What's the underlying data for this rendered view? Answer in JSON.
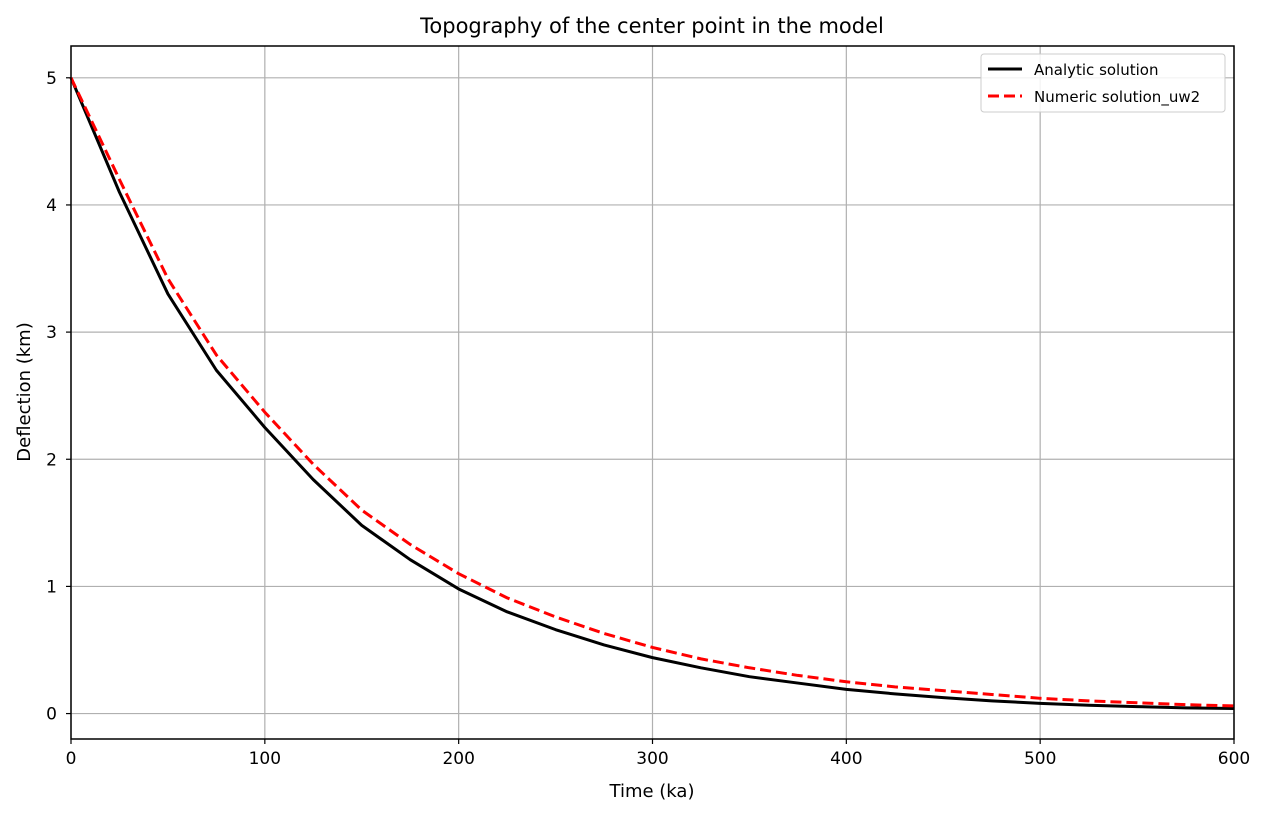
{
  "chart_data": {
    "type": "line",
    "title": "Topography of the center point in the model",
    "xlabel": "Time (ka)",
    "ylabel": "Deflection (km)",
    "xlim": [
      0,
      600
    ],
    "ylim": [
      -0.2,
      5.25
    ],
    "xticks": [
      0,
      100,
      200,
      300,
      400,
      500,
      600
    ],
    "yticks": [
      0,
      1,
      2,
      3,
      4,
      5
    ],
    "grid": true,
    "legend_position": "top-right",
    "series": [
      {
        "name": "Analytic solution",
        "color": "#000000",
        "style": "solid",
        "x": [
          0,
          25,
          50,
          75,
          100,
          125,
          150,
          175,
          200,
          225,
          250,
          275,
          300,
          325,
          350,
          375,
          400,
          425,
          450,
          475,
          500,
          525,
          550,
          575,
          600
        ],
        "y": [
          5.0,
          4.1,
          3.3,
          2.7,
          2.25,
          1.84,
          1.48,
          1.21,
          0.98,
          0.8,
          0.66,
          0.54,
          0.44,
          0.36,
          0.29,
          0.24,
          0.19,
          0.155,
          0.125,
          0.1,
          0.08,
          0.065,
          0.055,
          0.045,
          0.04
        ]
      },
      {
        "name": "Numeric solution_uw2",
        "color": "#ff0000",
        "style": "dashed",
        "x": [
          0,
          25,
          50,
          75,
          100,
          125,
          150,
          175,
          200,
          225,
          250,
          275,
          300,
          325,
          350,
          375,
          400,
          425,
          450,
          475,
          500,
          525,
          550,
          575,
          600
        ],
        "y": [
          5.0,
          4.2,
          3.42,
          2.82,
          2.37,
          1.96,
          1.6,
          1.33,
          1.1,
          0.91,
          0.76,
          0.63,
          0.52,
          0.43,
          0.36,
          0.3,
          0.25,
          0.21,
          0.18,
          0.15,
          0.12,
          0.1,
          0.085,
          0.07,
          0.06
        ]
      }
    ]
  }
}
